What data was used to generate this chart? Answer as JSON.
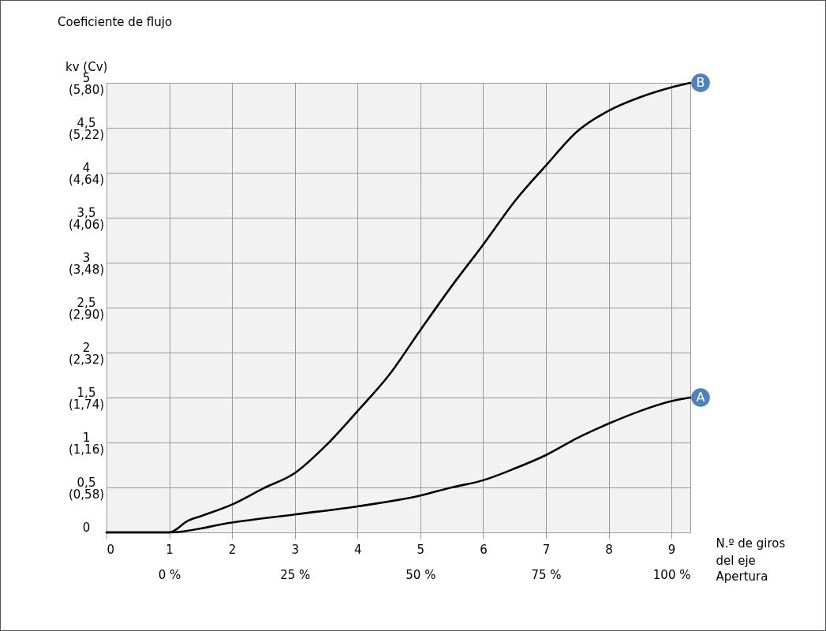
{
  "chart_data": {
    "type": "line",
    "title": "Coeficiente de flujo",
    "annotations": [
      "kv (Cv)"
    ],
    "xlabel": "N.º de giros del eje",
    "x2label": "Apertura",
    "xlim": [
      0,
      9.3
    ],
    "xticks": [
      0,
      1,
      2,
      3,
      4,
      5,
      6,
      7,
      8,
      9
    ],
    "x2lim": [
      -12.5,
      103.75
    ],
    "x2ticks": [
      {
        "value": 0,
        "label": "0 %"
      },
      {
        "value": 25,
        "label": "25 %"
      },
      {
        "value": 50,
        "label": "50 %"
      },
      {
        "value": 75,
        "label": "75 %"
      },
      {
        "value": 100,
        "label": "100 %"
      }
    ],
    "ylim": [
      0,
      5
    ],
    "yticks": [
      0,
      {
        "value": 0.5,
        "label": "0,5"
      },
      1,
      {
        "value": 1.5,
        "label": "1,5"
      },
      2,
      {
        "value": 2.5,
        "label": "2,5"
      },
      3,
      {
        "value": 3.5,
        "label": "3,5"
      },
      4,
      {
        "value": 4.5,
        "label": "4,5"
      },
      5
    ],
    "y2lim": [
      0,
      5.8
    ],
    "y2ticks": [
      {
        "value": 0.58,
        "label": "(0,58)"
      },
      {
        "value": 1.16,
        "label": "(1,16)"
      },
      {
        "value": 1.74,
        "label": "(1,74)"
      },
      {
        "value": 2.32,
        "label": "(2,32)"
      },
      {
        "value": 2.9,
        "label": "(2,90)"
      },
      {
        "value": 3.48,
        "label": "(3,48)"
      },
      {
        "value": 4.06,
        "label": "(4,06)"
      },
      {
        "value": 4.64,
        "label": "(4,64)"
      },
      {
        "value": 5.22,
        "label": "(5,22)"
      },
      {
        "value": 5.8,
        "label": "(5,80)"
      }
    ],
    "grid": true,
    "line_style": "solid",
    "series": [
      {
        "name": "A",
        "color": "#000000",
        "x": [
          0,
          0.6,
          1,
          2,
          3,
          4,
          5,
          5.5,
          6,
          6.5,
          7,
          7.5,
          8,
          8.5,
          9,
          9.3
        ],
        "values": [
          0,
          0,
          0,
          0.11,
          0.2,
          0.29,
          0.41,
          0.5,
          0.58,
          0.71,
          0.86,
          1.05,
          1.21,
          1.35,
          1.46,
          1.5
        ]
      },
      {
        "name": "B",
        "color": "#000000",
        "x": [
          0,
          0.6,
          1,
          1.3,
          1.5,
          2,
          2.5,
          3,
          3.5,
          4,
          4.5,
          5,
          5.5,
          6,
          6.5,
          7,
          7.5,
          8,
          8.5,
          9,
          9.3
        ],
        "values": [
          0,
          0,
          0,
          0.13,
          0.18,
          0.31,
          0.49,
          0.66,
          0.97,
          1.35,
          1.75,
          2.25,
          2.74,
          3.2,
          3.68,
          4.08,
          4.46,
          4.69,
          4.84,
          4.95,
          5
        ]
      }
    ]
  }
}
